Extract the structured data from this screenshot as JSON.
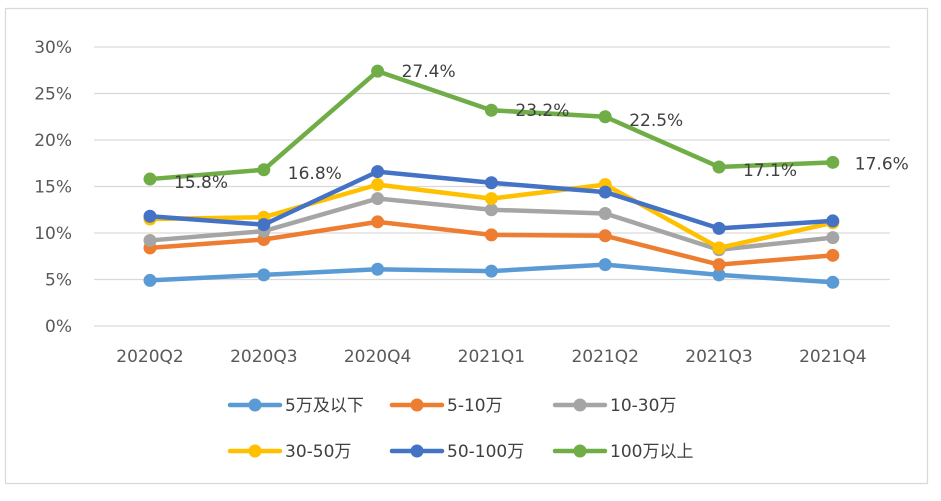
{
  "chart_data": {
    "type": "line",
    "categories": [
      "2020Q2",
      "2020Q3",
      "2020Q4",
      "2021Q1",
      "2021Q2",
      "2021Q3",
      "2021Q4"
    ],
    "ylim": [
      0,
      30
    ],
    "yticks": [
      0,
      5,
      10,
      15,
      20,
      25,
      30
    ],
    "ytick_labels": [
      "0%",
      "5%",
      "10%",
      "15%",
      "20%",
      "25%",
      "30%"
    ],
    "grid": true,
    "legend_position": "bottom",
    "series": [
      {
        "name": "5万及以下",
        "color": "#5b9bd5",
        "values": [
          4.9,
          5.5,
          6.1,
          5.9,
          6.6,
          5.5,
          4.7
        ]
      },
      {
        "name": "5-10万",
        "color": "#ed7d31",
        "values": [
          8.4,
          9.3,
          11.2,
          9.8,
          9.7,
          6.6,
          7.6
        ]
      },
      {
        "name": "10-30万",
        "color": "#a5a5a5",
        "values": [
          9.2,
          10.2,
          13.7,
          12.5,
          12.1,
          8.2,
          9.5
        ]
      },
      {
        "name": "30-50万",
        "color": "#ffc000",
        "values": [
          11.5,
          11.7,
          15.2,
          13.7,
          15.2,
          8.4,
          11.1
        ]
      },
      {
        "name": "50-100万",
        "color": "#4472c4",
        "values": [
          11.8,
          10.9,
          16.6,
          15.4,
          14.4,
          10.5,
          11.3
        ]
      },
      {
        "name": "100万以上",
        "color": "#70ad47",
        "values": [
          15.8,
          16.8,
          27.4,
          23.2,
          22.5,
          17.1,
          17.6
        ],
        "data_labels": [
          "15.8%",
          "16.8%",
          "27.4%",
          "23.2%",
          "22.5%",
          "17.1%",
          "17.6%"
        ]
      }
    ]
  }
}
